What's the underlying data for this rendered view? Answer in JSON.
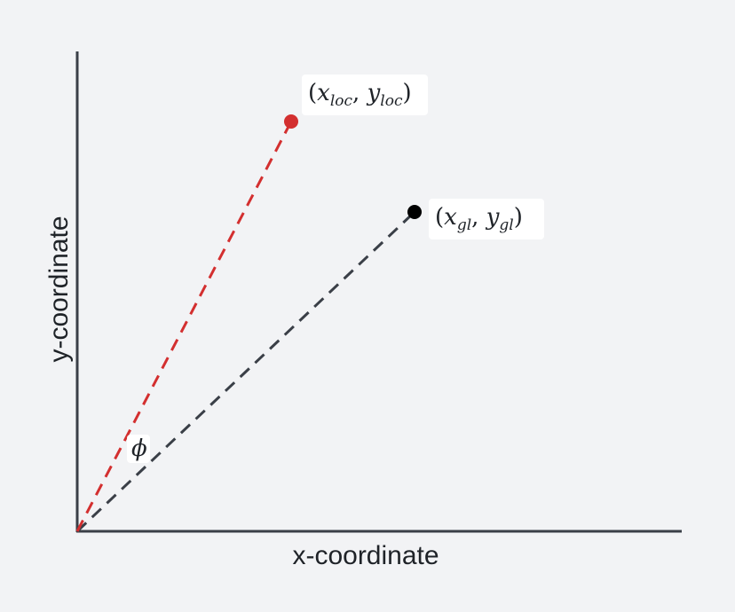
{
  "axes": {
    "x_label": "x-coordinate",
    "y_label": "y-coordinate"
  },
  "points": {
    "local": {
      "open_paren": "(",
      "x_var": "x",
      "x_sub": "loc",
      "comma": ", ",
      "y_var": "y",
      "y_sub": "loc",
      "close_paren": ")",
      "color": "#d32f2f"
    },
    "global": {
      "open_paren": "(",
      "x_var": "x",
      "x_sub": "gl",
      "comma": ", ",
      "y_var": "y",
      "y_sub": "gl",
      "close_paren": ")",
      "color": "#000000"
    }
  },
  "angle": {
    "symbol": "ϕ"
  },
  "colors": {
    "background": "#f2f3f5",
    "axis": "#3a3f47",
    "local_line": "#d32f2f",
    "global_line": "#3a3f47"
  }
}
